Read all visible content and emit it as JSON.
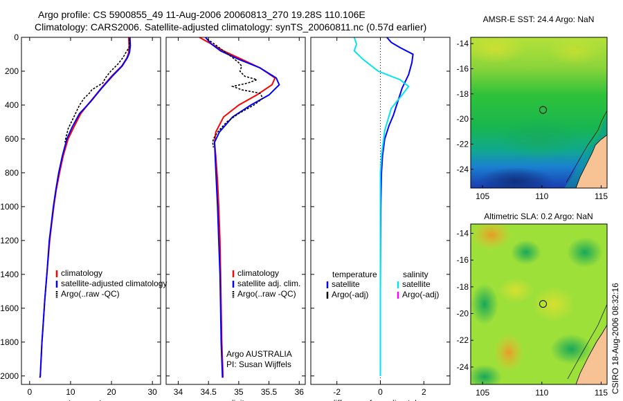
{
  "header": {
    "line1": "Argo profile: CS 5900855_49 11-Aug-2006 20060813_270 19.28S 110.106E",
    "line2": "Climatology: CARS2006. Satellite-adjusted climatology: synTS_20060811.nc (0.57d earlier)"
  },
  "credit": "CSIRO 18-Aug-2006 08:32:16",
  "colors": {
    "red": "#ff0000",
    "blue": "#0000ff",
    "black": "#000000",
    "cyan": "#00e5ee",
    "magenta": "#ff00ff",
    "land": "#f7c394"
  },
  "chart_data": [
    {
      "type": "line",
      "id": "temperature",
      "xlabel": "temperature",
      "ylabel": "",
      "xlim": [
        -2,
        32
      ],
      "ylim": [
        2050,
        0
      ],
      "xticks": [
        0,
        10,
        20,
        30
      ],
      "yticks": [
        0,
        200,
        400,
        600,
        800,
        1000,
        1200,
        1400,
        1600,
        1800,
        2000
      ],
      "legend": [
        "climatology",
        "satellite-adjusted climatology",
        "Argo(..raw -QC)"
      ],
      "series": [
        {
          "name": "climatology",
          "color": "red",
          "x": [
            24.2,
            24.3,
            24.2,
            23.8,
            22.5,
            20,
            17.5,
            14.8,
            12.5,
            10.8,
            9.4,
            8.2,
            7.3,
            6.5,
            5.9,
            5.4,
            4.9,
            4.2,
            3.7,
            3.3,
            3.0,
            2.8,
            2.6,
            2.5
          ],
          "y": [
            0,
            50,
            90,
            120,
            170,
            230,
            300,
            380,
            450,
            530,
            600,
            700,
            800,
            900,
            1000,
            1100,
            1200,
            1400,
            1550,
            1700,
            1800,
            1900,
            2000,
            2010
          ]
        },
        {
          "name": "satellite-adjusted climatology",
          "color": "blue",
          "x": [
            24.5,
            24.6,
            24.4,
            23.9,
            22.6,
            20.2,
            17.6,
            14.9,
            12.2,
            10.4,
            9.1,
            8.0,
            7.1,
            6.4,
            5.8,
            5.3,
            4.8,
            4.2,
            3.7,
            3.3,
            3.0,
            2.8,
            2.6,
            2.5
          ],
          "y": [
            0,
            50,
            90,
            120,
            170,
            230,
            300,
            380,
            450,
            530,
            600,
            700,
            800,
            900,
            1000,
            1100,
            1200,
            1400,
            1550,
            1700,
            1800,
            1900,
            2000,
            2010
          ]
        },
        {
          "name": "Argo(..raw -QC)",
          "color": "black",
          "dashed": true,
          "x": [
            24.4,
            24.3,
            23.5,
            22.8,
            21.5,
            19.8,
            18.5,
            17.9,
            16.5,
            15.2,
            14.6,
            13.3,
            12.2,
            10.8,
            9.4,
            8.6
          ],
          "y": [
            10,
            60,
            90,
            120,
            160,
            200,
            240,
            270,
            290,
            310,
            330,
            360,
            400,
            470,
            540,
            620
          ]
        }
      ]
    },
    {
      "type": "line",
      "id": "salinity",
      "xlabel": "salinity",
      "ylabel": "",
      "xlim": [
        33.8,
        36.1
      ],
      "ylim": [
        2050,
        0
      ],
      "xticks": [
        34,
        34.5,
        35,
        35.5,
        36
      ],
      "xticklabels": [
        "34",
        "34.5",
        "35",
        "35.5",
        "36"
      ],
      "yticks": [
        0,
        200,
        400,
        600,
        800,
        1000,
        1200,
        1400,
        1600,
        1800,
        2000
      ],
      "legend": [
        "climatology",
        "satellite adj. clim.",
        "Argo(..raw -QC)"
      ],
      "annotations": [
        "Argo AUSTRALIA",
        "PI: Susan Wijffels"
      ],
      "series": [
        {
          "name": "climatology",
          "color": "red",
          "x": [
            34.35,
            34.55,
            34.75,
            35.05,
            35.35,
            35.6,
            35.55,
            35.3,
            35.0,
            34.75,
            34.62,
            34.6,
            34.62,
            34.65,
            34.67,
            34.69,
            34.7,
            34.71,
            34.72,
            34.73,
            34.74,
            34.74
          ],
          "y": [
            0,
            40,
            80,
            130,
            180,
            240,
            280,
            340,
            400,
            470,
            560,
            620,
            700,
            850,
            1000,
            1200,
            1400,
            1600,
            1800,
            1900,
            2000,
            2010
          ]
        },
        {
          "name": "satellite adj. clim.",
          "color": "blue",
          "x": [
            34.45,
            34.55,
            34.7,
            35.0,
            35.35,
            35.62,
            35.67,
            35.5,
            35.2,
            34.9,
            34.68,
            34.6,
            34.61,
            34.63,
            34.65,
            34.67,
            34.69,
            34.7,
            34.71,
            34.72,
            34.73,
            34.73
          ],
          "y": [
            0,
            40,
            80,
            130,
            180,
            240,
            280,
            340,
            400,
            470,
            560,
            620,
            700,
            850,
            1000,
            1200,
            1400,
            1600,
            1800,
            1900,
            2000,
            2010
          ]
        },
        {
          "name": "Argo(..raw -QC)",
          "color": "black",
          "dashed": true,
          "x": [
            34.48,
            34.6,
            34.75,
            34.9,
            35.0,
            35.05,
            35.02,
            35.1,
            35.3,
            35.15,
            34.9,
            35.05,
            35.35,
            35.4,
            35.25,
            35.0,
            34.8,
            34.65,
            34.58,
            34.57,
            34.58
          ],
          "y": [
            10,
            40,
            80,
            120,
            150,
            170,
            200,
            230,
            250,
            270,
            290,
            310,
            330,
            360,
            400,
            450,
            500,
            560,
            600,
            620,
            650
          ]
        }
      ]
    },
    {
      "type": "line",
      "id": "difference",
      "xlabel": "difference from climatology",
      "ylabel": "",
      "xlim": [
        -3.2,
        3.2
      ],
      "ylim": [
        2050,
        0
      ],
      "xticks": [
        -2,
        0,
        2
      ],
      "yticks": [
        0,
        200,
        400,
        600,
        800,
        1000,
        1200,
        1400,
        1600,
        1800,
        2000
      ],
      "legend_headers": [
        "temperature",
        "salinity"
      ],
      "legend": [
        "satellite",
        "Argo(-adj)",
        "satellite",
        "Argo(-adj)"
      ],
      "series": [
        {
          "name": "temperature satellite",
          "color": "blue",
          "x": [
            0.3,
            0.5,
            0.9,
            1.5,
            1.45,
            1.3,
            1.0,
            0.8,
            0.6,
            0.4,
            0.2,
            0.1,
            0.05,
            0.02,
            0.01,
            0.0,
            0.0,
            0.0
          ],
          "y": [
            0,
            30,
            60,
            100,
            150,
            220,
            300,
            380,
            460,
            520,
            600,
            700,
            800,
            1000,
            1200,
            1500,
            1800,
            2000
          ]
        },
        {
          "name": "salinity satellite",
          "color": "cyan",
          "x": [
            -1.2,
            -1.1,
            -1.2,
            -0.8,
            -0.1,
            0.9,
            1.3,
            1.0,
            0.5,
            0.2,
            0.05,
            0.0,
            0.0,
            0.0,
            0.0,
            0.0
          ],
          "y": [
            0,
            40,
            80,
            130,
            200,
            250,
            290,
            340,
            420,
            550,
            700,
            800,
            1000,
            1300,
            1600,
            2000
          ]
        }
      ]
    },
    {
      "type": "heatmap",
      "id": "amsr-sst",
      "title": "AMSR-E SST: 24.4 Argo: NaN",
      "xticks": [
        105,
        110,
        115
      ],
      "yticks": [
        -14,
        -16,
        -18,
        -20,
        -22,
        -24
      ],
      "xlim": [
        104,
        115.5
      ],
      "ylim": [
        -25.5,
        -13.5
      ],
      "marker": {
        "lon": 110.1,
        "lat": -19.28
      }
    },
    {
      "type": "heatmap",
      "id": "altimetric-sla",
      "title": "Altimetric SLA: 0.2 Argo: NaN",
      "xticks": [
        105,
        110,
        115
      ],
      "yticks": [
        -14,
        -16,
        -18,
        -20,
        -22,
        -24
      ],
      "xlim": [
        104,
        115.5
      ],
      "ylim": [
        -25.3,
        -13.3
      ],
      "marker": {
        "lon": 110.1,
        "lat": -19.28
      }
    }
  ]
}
